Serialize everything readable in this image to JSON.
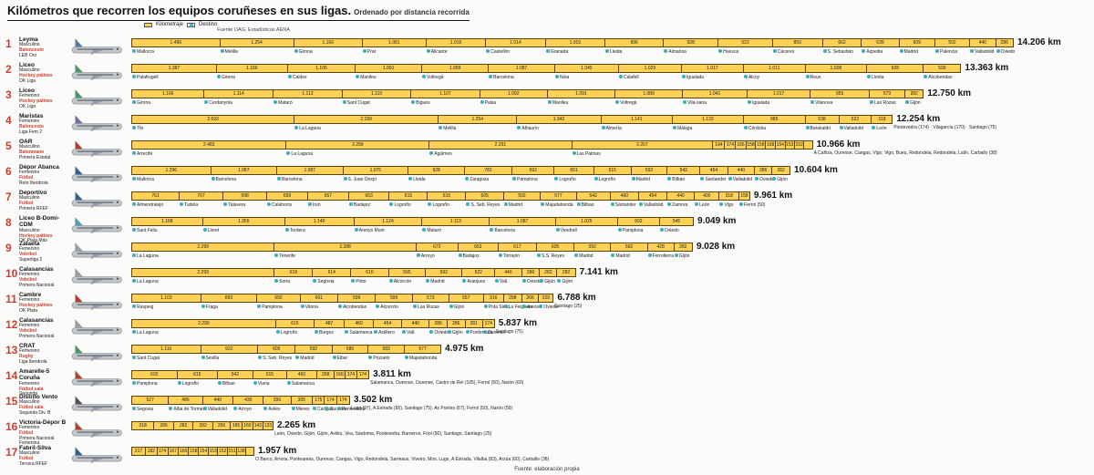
{
  "header": {
    "title": "Kilómetros que recorren los equipos coruñeses en sus ligas.",
    "subtitle": "Ordenado por distancia recorrida",
    "source": "Fuente OAG, Estadísticas AENA",
    "legend_km": "Kilometraje",
    "legend_dest": "Destino"
  },
  "footer": {
    "source": "Fuente: elaboración propia"
  },
  "colors": {
    "bar": "#FDD153",
    "bar_border": "#55430A",
    "dest_dot": "#3AAEBD",
    "rank_red": "#D23B2F"
  },
  "chart_data": {
    "type": "bar",
    "unit": "km",
    "note": "Horizontal segmented bars: each segment = kilometres to one away destination; total shown at bar end.",
    "teams": [
      {
        "rank": "1",
        "name": "Leyma",
        "gender": "Masculino",
        "sport": "Baloncesto",
        "league": "LEB Oro",
        "total": "14.206 km",
        "total_km": 14206,
        "accent": "#4d7fa8",
        "extra": "",
        "segments": [
          [
            1496,
            "Mallorca"
          ],
          [
            1254,
            "Melilla"
          ],
          [
            1166,
            "Girona"
          ],
          [
            1081,
            "Prat"
          ],
          [
            1016,
            "Alicante"
          ],
          [
            1014,
            "Castellón"
          ],
          [
            1010,
            "Granada"
          ],
          [
            996,
            "Lleida"
          ],
          [
            928,
            "Almansa"
          ],
          [
            923,
            "Huesca"
          ],
          [
            850,
            "Cáceres"
          ],
          [
            662,
            "S. Sebastián"
          ],
          [
            639,
            "Azpeitia"
          ],
          [
            609,
            "Madrid"
          ],
          [
            592,
            "Palencia"
          ],
          [
            440,
            "Valladolid"
          ],
          [
            286,
            "Oviedo"
          ]
        ]
      },
      {
        "rank": "2",
        "name": "Liceo",
        "gender": "Masculino",
        "sport": "Hockey patines",
        "league": "OK Liga",
        "total": "13.363 km",
        "total_km": 13363,
        "accent": "#3f9e63",
        "extra": "",
        "segments": [
          [
            1387,
            "Palafrugell"
          ],
          [
            1166,
            "Girona"
          ],
          [
            1106,
            "Caldes"
          ],
          [
            1091,
            "Manlleu"
          ],
          [
            1089,
            "Voltregà"
          ],
          [
            1087,
            "Barcelona"
          ],
          [
            1045,
            "Noia"
          ],
          [
            1029,
            "Calafell"
          ],
          [
            1017,
            "Igualada"
          ],
          [
            1011,
            "Alcoy"
          ],
          [
            1008,
            "Reus"
          ],
          [
            928,
            "Lleida"
          ],
          [
            599,
            "Alcobendas"
          ]
        ]
      },
      {
        "rank": "3",
        "name": "Liceo",
        "gender": "Femenino",
        "sport": "Hockey patines",
        "league": "OK Liga",
        "total": "12.750 km",
        "total_km": 12750,
        "accent": "#3f9e63",
        "extra": "",
        "segments": [
          [
            1166,
            "Girona"
          ],
          [
            1114,
            "Cerdanyola"
          ],
          [
            1113,
            "Mataró"
          ],
          [
            1110,
            "Sant Cugat"
          ],
          [
            1107,
            "Bigues"
          ],
          [
            1092,
            "Palau"
          ],
          [
            1091,
            "Manlleu"
          ],
          [
            1089,
            "Voltregà"
          ],
          [
            1041,
            "Vila-sana"
          ],
          [
            1017,
            "Igualada"
          ],
          [
            955,
            "Vilanova"
          ],
          [
            573,
            "Las Rozas"
          ],
          [
            282,
            "Gijón"
          ]
        ]
      },
      {
        "rank": "4",
        "name": "Maristas",
        "gender": "Femenino",
        "sport": "Baloncesto",
        "league": "Liga Fem 2",
        "total": "12.254 km",
        "total_km": 12254,
        "accent": "#7a68a8",
        "extra": "Pontevedra (174) · Vilagarcía (170) · Santiago (75)",
        "segments": [
          [
            2593,
            "Tfe"
          ],
          [
            2299,
            "La Laguna"
          ],
          [
            1254,
            "Melilla"
          ],
          [
            1342,
            "Alhaurín"
          ],
          [
            1141,
            "Almería"
          ],
          [
            1133,
            "Málaga"
          ],
          [
            985,
            "Córdoba"
          ],
          [
            538,
            "Barakaldo"
          ],
          [
            522,
            "Valladolid"
          ],
          [
            318,
            "León"
          ]
        ]
      },
      {
        "rank": "5",
        "name": "OAR",
        "gender": "Masculino",
        "sport": "Balonmano",
        "league": "Primera Estatal",
        "total": "10.966 km",
        "total_km": 10966,
        "accent": "#c0392b",
        "extra": "A Cañiza, Ourense, Cangas, Vigo, Vigo, Bueu, Redondela, Redondela, Lalín, Carballo (38)",
        "segments": [
          [
            2483,
            "Arrecife"
          ],
          [
            2299,
            "La Laguna"
          ],
          [
            2291,
            "Agüimes"
          ],
          [
            2267,
            "Las Palmas"
          ],
          [
            194,
            ""
          ],
          [
            174,
            ""
          ],
          [
            165,
            ""
          ],
          [
            158,
            ""
          ],
          [
            158,
            ""
          ],
          [
            158,
            ""
          ],
          [
            154,
            ""
          ],
          [
            153,
            ""
          ],
          [
            152,
            ""
          ],
          [
            121,
            ""
          ]
        ]
      },
      {
        "rank": "6",
        "name": "Dépor Abanca",
        "gender": "Femenino",
        "sport": "Fútbol",
        "league": "Reto Iberdrola",
        "total": "10.604 km",
        "total_km": 10604,
        "accent": "#2b5f9e",
        "extra": "",
        "segments": [
          [
            1296,
            "Mallorca"
          ],
          [
            1087,
            "Barcelona"
          ],
          [
            1087,
            "Barcelona"
          ],
          [
            1075,
            "S. Juan Despí"
          ],
          [
            928,
            "Lleida"
          ],
          [
            781,
            "Zaragoza"
          ],
          [
            692,
            "Pamplona"
          ],
          [
            651,
            "Logroño"
          ],
          [
            615,
            "Logroño"
          ],
          [
            592,
            "Madrid"
          ],
          [
            542,
            "Bilbao"
          ],
          [
            454,
            "Santander"
          ],
          [
            440,
            "Valladolid"
          ],
          [
            286,
            "Oviedo"
          ],
          [
            282,
            "Gijón"
          ]
        ]
      },
      {
        "rank": "7",
        "name": "Deportivo",
        "gender": "Masculino",
        "sport": "Fútbol",
        "league": "Primera RFEF",
        "total": "9.961 km",
        "total_km": 9961,
        "accent": "#2b5f9e",
        "extra": "",
        "segments": [
          [
            761,
            "Almendralejo"
          ],
          [
            707,
            "Tudela"
          ],
          [
            698,
            "Talavera"
          ],
          [
            659,
            "Calahorra"
          ],
          [
            657,
            "Irún"
          ],
          [
            653,
            "Badajoz"
          ],
          [
            615,
            "Logroño"
          ],
          [
            615,
            "Logroño"
          ],
          [
            605,
            "S. Seb. Reyes"
          ],
          [
            592,
            "Madrid"
          ],
          [
            577,
            "Majadahonda"
          ],
          [
            542,
            "Bilbao"
          ],
          [
            460,
            "Santander"
          ],
          [
            454,
            "Valladolid"
          ],
          [
            440,
            "Zamora"
          ],
          [
            400,
            "León"
          ],
          [
            318,
            "Vigo"
          ],
          [
            158,
            "Ferrol (50)"
          ]
        ]
      },
      {
        "rank": "8",
        "name": "Liceo B-Domi-CDM",
        "gender": "Masculino",
        "sport": "Hockey patines",
        "league": "OK Plata Más",
        "total": "9.049 km",
        "total_km": 9049,
        "accent": "#4aa3c0",
        "extra": "",
        "segments": [
          [
            1168,
            "Sant Feliu"
          ],
          [
            1355,
            "Lloret"
          ],
          [
            1140,
            "Tordera"
          ],
          [
            1124,
            "Arenys Munt"
          ],
          [
            1113,
            "Mataró"
          ],
          [
            1087,
            "Barcelona"
          ],
          [
            1025,
            "Vendrell"
          ],
          [
            692,
            "Pamplona"
          ],
          [
            545,
            "Oviedo"
          ]
        ]
      },
      {
        "rank": "9",
        "name": "Zalaeta",
        "gender": "Femenino",
        "sport": "Voleibol",
        "league": "Superliga 2",
        "total": "9.028 km",
        "total_km": 9028,
        "accent": "#9aa0a5",
        "extra": "",
        "segments": [
          [
            2299,
            "La Laguna"
          ],
          [
            2288,
            "Tenerife"
          ],
          [
            672,
            "Arroyo"
          ],
          [
            653,
            "Badajoz"
          ],
          [
            617,
            "Torrejón"
          ],
          [
            605,
            "S.S. Reyes"
          ],
          [
            592,
            "Madrid"
          ],
          [
            592,
            "Madrid"
          ],
          [
            428,
            "Ferrolterra"
          ],
          [
            282,
            "Gijón"
          ]
        ]
      },
      {
        "rank": "10",
        "name": "Calasancias",
        "gender": "Femenino",
        "sport": "Voleibol",
        "league": "Primera Nacional",
        "total": "7.141 km",
        "total_km": 7141,
        "accent": "#9aa0a5",
        "extra": "",
        "segments": [
          [
            2299,
            "La Laguna"
          ],
          [
            619,
            "Soria"
          ],
          [
            614,
            "Segovia"
          ],
          [
            610,
            "Pinto"
          ],
          [
            595,
            "Alcorcón"
          ],
          [
            592,
            "Madrid"
          ],
          [
            522,
            "Aranjuez"
          ],
          [
            440,
            "Vall."
          ],
          [
            286,
            "Oviedo"
          ],
          [
            282,
            "Gijón"
          ],
          [
            282,
            "Gijón"
          ]
        ]
      },
      {
        "rank": "11",
        "name": "Cambre",
        "gender": "Femenino",
        "sport": "Hockey patines",
        "league": "OK Plata",
        "total": "6.788 km",
        "total_km": 6788,
        "accent": "#c0392b",
        "extra": "Santiago (25)",
        "segments": [
          [
            1103,
            "Raspeig"
          ],
          [
            893,
            "Fraga"
          ],
          [
            692,
            "Pamplona"
          ],
          [
            601,
            "Vitoria"
          ],
          [
            599,
            "Alcobendas"
          ],
          [
            595,
            "Alcorcón"
          ],
          [
            573,
            "Las Rozas"
          ],
          [
            557,
            "Gijón"
          ],
          [
            316,
            "Pola Siero"
          ],
          [
            298,
            "La Felguera"
          ],
          [
            266,
            "Areces"
          ],
          [
            220,
            "Oviedo"
          ]
        ]
      },
      {
        "rank": "12",
        "name": "Calasancias",
        "gender": "Femenino",
        "sport": "Voleibol",
        "league": "Primera Nacional",
        "total": "5.837 km",
        "total_km": 5837,
        "accent": "#9aa0a5",
        "extra": "Santiago (75)",
        "segments": [
          [
            2299,
            "La Laguna"
          ],
          [
            615,
            "Logroño"
          ],
          [
            487,
            "Burgos"
          ],
          [
            460,
            "Salamanca"
          ],
          [
            454,
            "Astillero"
          ],
          [
            440,
            "Vall."
          ],
          [
            286,
            "Oviedo"
          ],
          [
            286,
            "Gijón"
          ],
          [
            281,
            "Ponferrada"
          ],
          [
            174,
            "Ourense"
          ]
        ]
      },
      {
        "rank": "13",
        "name": "CRAT",
        "gender": "Femenino",
        "sport": "Rugby",
        "league": "Liga Iberdrola",
        "total": "4.975 km",
        "total_km": 4975,
        "accent": "#3f9e63",
        "extra": "",
        "segments": [
          [
            1110,
            "Sant Cugat"
          ],
          [
            922,
            "Sevilla"
          ],
          [
            605,
            "S. Seb. Reyes"
          ],
          [
            592,
            "Madrid"
          ],
          [
            586,
            "Eibar"
          ],
          [
            583,
            "Pozuelo"
          ],
          [
            577,
            "Majadahonda"
          ]
        ]
      },
      {
        "rank": "14",
        "name": "Amarelle-5 Coruña",
        "gender": "Femenino",
        "sport": "Fútbol sala",
        "league": "Segunda",
        "total": "3.811 km",
        "total_km": 3811,
        "accent": "#c0392b",
        "extra": "Salamanca, Ourense, Ourense, Castro de Rei (105), Ferrol (50), Narón (60)",
        "segments": [
          [
            692,
            "Pamplona"
          ],
          [
            615,
            "Logroño"
          ],
          [
            542,
            "Bilbao"
          ],
          [
            515,
            "Viana"
          ],
          [
            460,
            "Salamanca"
          ],
          [
            268,
            ""
          ],
          [
            166,
            ""
          ],
          [
            174,
            ""
          ],
          [
            174,
            ""
          ]
        ]
      },
      {
        "rank": "15",
        "name": "Distrito Vento",
        "gender": "Masculino",
        "sport": "Fútbol sala",
        "league": "Segunda Div. B",
        "total": "3.502 km",
        "total_km": 3502,
        "accent": "#555555",
        "extra": "Lugo (97), A Estrada (86), Santiago (75), As Pontes (67), Ferrol (50), Narón (50)",
        "segments": [
          [
            527,
            "Segovia"
          ],
          [
            486,
            "Alba de Tormes"
          ],
          [
            440,
            "Valladolid"
          ],
          [
            430,
            "Arroyo"
          ],
          [
            396,
            "Avilés"
          ],
          [
            305,
            "Mieres"
          ],
          [
            175,
            "Cangas"
          ],
          [
            174,
            "Ourense"
          ],
          [
            174,
            "Pontevedra"
          ]
        ]
      },
      {
        "rank": "16",
        "name": "Victoria-Dépor B",
        "gender": "Femenino",
        "sport": "Fútbol",
        "league": "Primera Nacional Femenina",
        "total": "2.265 km",
        "total_km": 2265,
        "accent": "#c0392b",
        "extra": "León, Oviedo, Gijón, Gijón, Avilés, Vea, Sárdoma, Pontevedra, Barreiros, Friol (90), Santiago, Santiago (25)",
        "segments": [
          [
            318,
            ""
          ],
          [
            286,
            ""
          ],
          [
            282,
            ""
          ],
          [
            282,
            ""
          ],
          [
            256,
            ""
          ],
          [
            165,
            ""
          ],
          [
            160,
            ""
          ],
          [
            143,
            ""
          ],
          [
            133,
            ""
          ]
        ]
      },
      {
        "rank": "17",
        "name": "Fabril-Silva",
        "gender": "Masculino",
        "sport": "Fútbol",
        "league": "Tercera RFEF",
        "total": "1.957 km",
        "total_km": 1957,
        "accent": "#2b5f9e",
        "extra": "O Barco, Arnoia, Ponteareas, Ourense, Cangas, Vigo, Redondela, Sarreaus, Viveiro, Mos, Lugo, A Estrada, Vilalba (83), Arzúa (60), Carballo (38)",
        "segments": [
          [
            217,
            ""
          ],
          [
            182,
            ""
          ],
          [
            174,
            ""
          ],
          [
            167,
            ""
          ],
          [
            165,
            ""
          ],
          [
            158,
            ""
          ],
          [
            154,
            ""
          ],
          [
            153,
            ""
          ],
          [
            152,
            ""
          ],
          [
            151,
            ""
          ],
          [
            138,
            ""
          ],
          [
            120,
            ""
          ]
        ]
      }
    ]
  }
}
